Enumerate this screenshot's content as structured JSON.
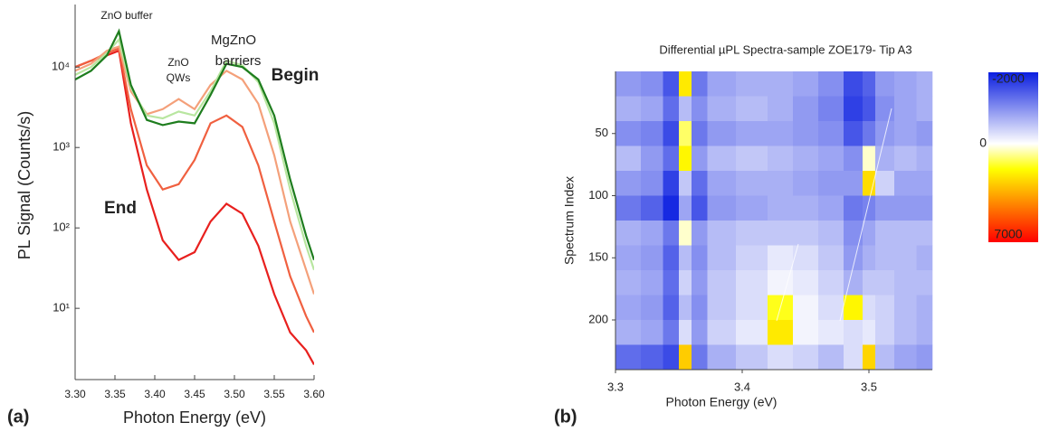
{
  "chart_data": [
    {
      "type": "line",
      "panel_label": "(a)",
      "log_y": true,
      "x_label": "Photon Energy (eV)",
      "y_label": "PL Signal (Counts/s)",
      "annotations": [
        "ZnO buffer",
        "ZnO",
        "QWs",
        "MgZnO",
        "barriers",
        "Begin",
        "End"
      ],
      "xlim": [
        3.3,
        3.6
      ],
      "xticks": [
        {
          "value": 3.3,
          "label": "3.30"
        },
        3.35,
        {
          "value": 3.4,
          "label": "3.40"
        },
        3.45,
        {
          "value": 3.5,
          "label": "3.50"
        },
        3.55,
        {
          "value": 3.6,
          "label": "3.60"
        }
      ],
      "ylim": [
        1.3,
        60000
      ],
      "yticks": [
        {
          "value": 10,
          "label": "10¹"
        },
        {
          "value": 100,
          "label": "10²"
        },
        {
          "value": 1000,
          "label": "10³"
        },
        {
          "value": 10000,
          "label": "10⁴"
        }
      ],
      "x": [
        3.3,
        3.32,
        3.34,
        3.355,
        3.37,
        3.39,
        3.41,
        3.43,
        3.45,
        3.47,
        3.49,
        3.51,
        3.53,
        3.55,
        3.57,
        3.59,
        3.6
      ],
      "series": [
        {
          "color": "#e8201e",
          "values": [
            10000,
            12000,
            14000,
            16000,
            2000,
            300,
            70,
            40,
            50,
            120,
            200,
            150,
            60,
            15,
            5,
            3,
            2
          ]
        },
        {
          "color": "#f06040",
          "values": [
            10000,
            12000,
            15000,
            17000,
            3000,
            600,
            300,
            350,
            700,
            2000,
            2500,
            1800,
            600,
            120,
            25,
            8,
            5
          ]
        },
        {
          "color": "#f4a07a",
          "values": [
            9000,
            11000,
            16000,
            18000,
            5000,
            2600,
            3000,
            4000,
            3000,
            6000,
            9000,
            7000,
            3500,
            800,
            120,
            30,
            15
          ]
        },
        {
          "color": "#b8e6a0",
          "values": [
            8000,
            10000,
            15000,
            22000,
            5500,
            2500,
            2300,
            2800,
            2500,
            5000,
            12000,
            10500,
            6500,
            2000,
            300,
            60,
            30
          ]
        },
        {
          "color": "#1e7d1e",
          "values": [
            7000,
            9000,
            14000,
            28000,
            6000,
            2200,
            1900,
            2100,
            2000,
            4500,
            11000,
            10000,
            7000,
            2500,
            400,
            80,
            40
          ]
        }
      ]
    },
    {
      "type": "heatmap",
      "panel_label": "(b)",
      "title": "Differential µPL Spectra-sample ZOE179- Tip A3",
      "x_label": "Photon Energy (eV)",
      "y_label": "Spectrum Index",
      "xlim": [
        3.3,
        3.55
      ],
      "xticks": [
        3.3,
        3.4,
        3.5
      ],
      "ylim": [
        0,
        240
      ],
      "y_inverted": true,
      "yticks": [
        50,
        100,
        150,
        200
      ],
      "colorscale": [
        [
          -2000,
          "#0a1ee0"
        ],
        [
          0,
          "#ffffff"
        ],
        [
          1000,
          "#ffff00"
        ],
        [
          7000,
          "#ff0000"
        ]
      ],
      "colorbar_ticks": [
        -2000,
        0,
        7000
      ],
      "x": [
        3.31,
        3.33,
        3.345,
        3.355,
        3.365,
        3.38,
        3.41,
        3.43,
        3.45,
        3.47,
        3.49,
        3.5,
        3.51,
        3.53,
        3.545
      ],
      "y": [
        10,
        30,
        50,
        70,
        90,
        110,
        130,
        150,
        170,
        190,
        210,
        230
      ],
      "values": [
        [
          -900,
          -1000,
          -1500,
          1500,
          -1200,
          -800,
          -700,
          -700,
          -800,
          -1000,
          -1600,
          -1400,
          -900,
          -800,
          -700
        ],
        [
          -700,
          -800,
          -1300,
          -600,
          -1000,
          -700,
          -600,
          -700,
          -900,
          -1100,
          -1700,
          -1500,
          -1000,
          -800,
          -700
        ],
        [
          -1000,
          -1100,
          -1600,
          600,
          -1200,
          -900,
          -800,
          -800,
          -900,
          -1000,
          -1500,
          -1200,
          -900,
          -800,
          -900
        ],
        [
          -600,
          -900,
          -1300,
          1200,
          -900,
          -600,
          -500,
          -600,
          -700,
          -800,
          -1000,
          200,
          -700,
          -600,
          -700
        ],
        [
          -900,
          -1000,
          -1700,
          -500,
          -1300,
          -800,
          -700,
          -700,
          -800,
          -900,
          -900,
          1800,
          -400,
          -800,
          -800
        ],
        [
          -1200,
          -1400,
          -1900,
          -800,
          -1500,
          -900,
          -800,
          -700,
          -700,
          -800,
          -1200,
          -1100,
          -900,
          -900,
          -900
        ],
        [
          -700,
          -800,
          -1200,
          200,
          -900,
          -600,
          -500,
          -500,
          -500,
          -600,
          -1000,
          -800,
          -600,
          -600,
          -600
        ],
        [
          -800,
          -900,
          -1400,
          -600,
          -1000,
          -600,
          -400,
          -200,
          -300,
          -500,
          -900,
          -700,
          -600,
          -600,
          -700
        ],
        [
          -700,
          -800,
          -1300,
          -400,
          -900,
          -500,
          -300,
          -100,
          -200,
          -400,
          -700,
          -500,
          -500,
          -600,
          -600
        ],
        [
          -800,
          -900,
          -1400,
          -600,
          -1000,
          -500,
          -300,
          900,
          -100,
          -300,
          1200,
          -300,
          -400,
          -600,
          -700
        ],
        [
          -700,
          -800,
          -1200,
          -300,
          -900,
          -400,
          -200,
          1500,
          -100,
          -200,
          -300,
          -200,
          -400,
          -600,
          -700
        ],
        [
          -1300,
          -1400,
          -1600,
          2200,
          -1200,
          -700,
          -500,
          -300,
          -400,
          -600,
          -300,
          2000,
          -600,
          -800,
          -900
        ]
      ]
    }
  ]
}
